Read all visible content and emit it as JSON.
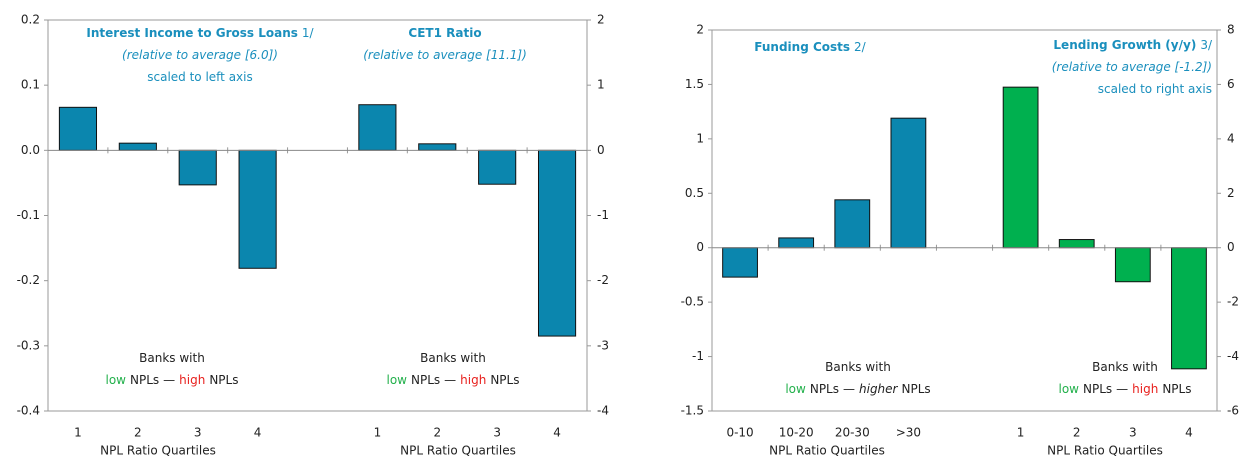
{
  "chart_data": [
    {
      "type": "bar",
      "categories": [
        "1",
        "2",
        "3",
        "4",
        null,
        "1",
        "2",
        "3",
        "4"
      ],
      "series": [
        {
          "name": "Interest Income to Gross Loans",
          "color": "#0b86ae",
          "values": [
            0.066,
            0.011,
            -0.053,
            -0.181,
            null,
            null,
            null,
            null,
            null
          ]
        },
        {
          "name": "CET1 Ratio",
          "color": "#0b86ae",
          "axis": "y2",
          "values": [
            null,
            null,
            null,
            null,
            null,
            0.7,
            0.1,
            -0.52,
            -2.85
          ]
        }
      ],
      "ylim": [
        -0.4,
        0.2
      ],
      "yticks": [
        -0.4,
        -0.3,
        -0.2,
        -0.1,
        {
          "value": 0,
          "label": "0.0"
        },
        0.1,
        0.2
      ],
      "y2lim": [
        -4,
        2
      ],
      "y2ticks": [
        -4,
        -3,
        -2,
        -1,
        0,
        1,
        2
      ],
      "xlabels": [
        "NPL Ratio Quartiles",
        "NPL Ratio Quartiles"
      ],
      "annotations": [
        {
          "lines": [
            [
              {
                "text": "Interest Income to Gross Loans",
                "weight": "bold",
                "color": "#1a8fbd"
              },
              {
                "text": "1/",
                "color": "#1a8fbd"
              }
            ],
            [
              {
                "text": "(relative to average [6.0])",
                "style": "italic",
                "color": "#1a8fbd"
              }
            ],
            [
              {
                "text": "scaled to left axis",
                "color": "#1a8fbd"
              }
            ]
          ]
        },
        {
          "lines": [
            [
              {
                "text": "CET1 Ratio",
                "weight": "bold",
                "color": "#1a8fbd"
              }
            ],
            [
              {
                "text": "(relative to average [11.1])",
                "style": "italic",
                "color": "#1a8fbd"
              }
            ]
          ]
        },
        {
          "lines": [
            [
              {
                "text": "Banks with"
              }
            ],
            [
              {
                "text": "low",
                "color": "#22b04b"
              },
              {
                "text": "NPLs"
              },
              {
                "text": "—"
              },
              {
                "text": "high",
                "color": "#e8211e"
              },
              {
                "text": "NPLs"
              }
            ]
          ]
        },
        {
          "lines": [
            [
              {
                "text": "Banks with"
              }
            ],
            [
              {
                "text": "low",
                "color": "#22b04b"
              },
              {
                "text": "NPLs"
              },
              {
                "text": "—"
              },
              {
                "text": "high",
                "color": "#e8211e"
              },
              {
                "text": "NPLs"
              }
            ]
          ]
        }
      ]
    },
    {
      "type": "bar",
      "categories": [
        "0-10",
        "10-20",
        "20-30",
        ">30",
        null,
        "1",
        "2",
        "3",
        "4"
      ],
      "series": [
        {
          "name": "Funding Costs",
          "color": "#0b86ae",
          "values": [
            -0.27,
            0.09,
            0.44,
            1.19,
            null,
            null,
            null,
            null,
            null
          ]
        },
        {
          "name": "Lending Growth (y/y)",
          "color": "#00b04f",
          "axis": "y2",
          "values": [
            null,
            null,
            null,
            null,
            null,
            5.9,
            0.3,
            -1.25,
            -4.45
          ]
        }
      ],
      "ylim": [
        -1.5,
        2
      ],
      "yticks": [
        -1.5,
        -1,
        -0.5,
        0,
        0.5,
        1,
        1.5,
        2
      ],
      "y2lim": [
        -6,
        8
      ],
      "y2ticks": [
        -6,
        -4,
        -2,
        0,
        2,
        4,
        6,
        8
      ],
      "xlabels": [
        "NPL Ratio Quartiles",
        "NPL Ratio Quartiles"
      ],
      "annotations": [
        {
          "lines": [
            [
              {
                "text": "Funding Costs",
                "weight": "bold",
                "color": "#1a8fbd"
              },
              {
                "text": "2/",
                "color": "#1a8fbd"
              }
            ]
          ]
        },
        {
          "lines": [
            [
              {
                "text": "Lending Growth (y/y)",
                "weight": "bold",
                "color": "#1a8fbd"
              },
              {
                "text": "3/",
                "color": "#1a8fbd"
              }
            ],
            [
              {
                "text": "(relative to average [-1.2])",
                "style": "italic",
                "color": "#1a8fbd"
              }
            ],
            [
              {
                "text": "scaled to right axis",
                "color": "#1a8fbd"
              }
            ]
          ]
        },
        {
          "lines": [
            [
              {
                "text": "Banks with"
              }
            ],
            [
              {
                "text": "low",
                "color": "#22b04b"
              },
              {
                "text": "NPLs"
              },
              {
                "text": "—"
              },
              {
                "text": "higher",
                "style": "italic"
              },
              {
                "text": "NPLs"
              }
            ]
          ]
        },
        {
          "lines": [
            [
              {
                "text": "Banks with"
              }
            ],
            [
              {
                "text": "low",
                "color": "#22b04b"
              },
              {
                "text": "NPLs"
              },
              {
                "text": "—"
              },
              {
                "text": "high",
                "color": "#e8211e"
              },
              {
                "text": "NPLs"
              }
            ]
          ]
        }
      ]
    }
  ]
}
